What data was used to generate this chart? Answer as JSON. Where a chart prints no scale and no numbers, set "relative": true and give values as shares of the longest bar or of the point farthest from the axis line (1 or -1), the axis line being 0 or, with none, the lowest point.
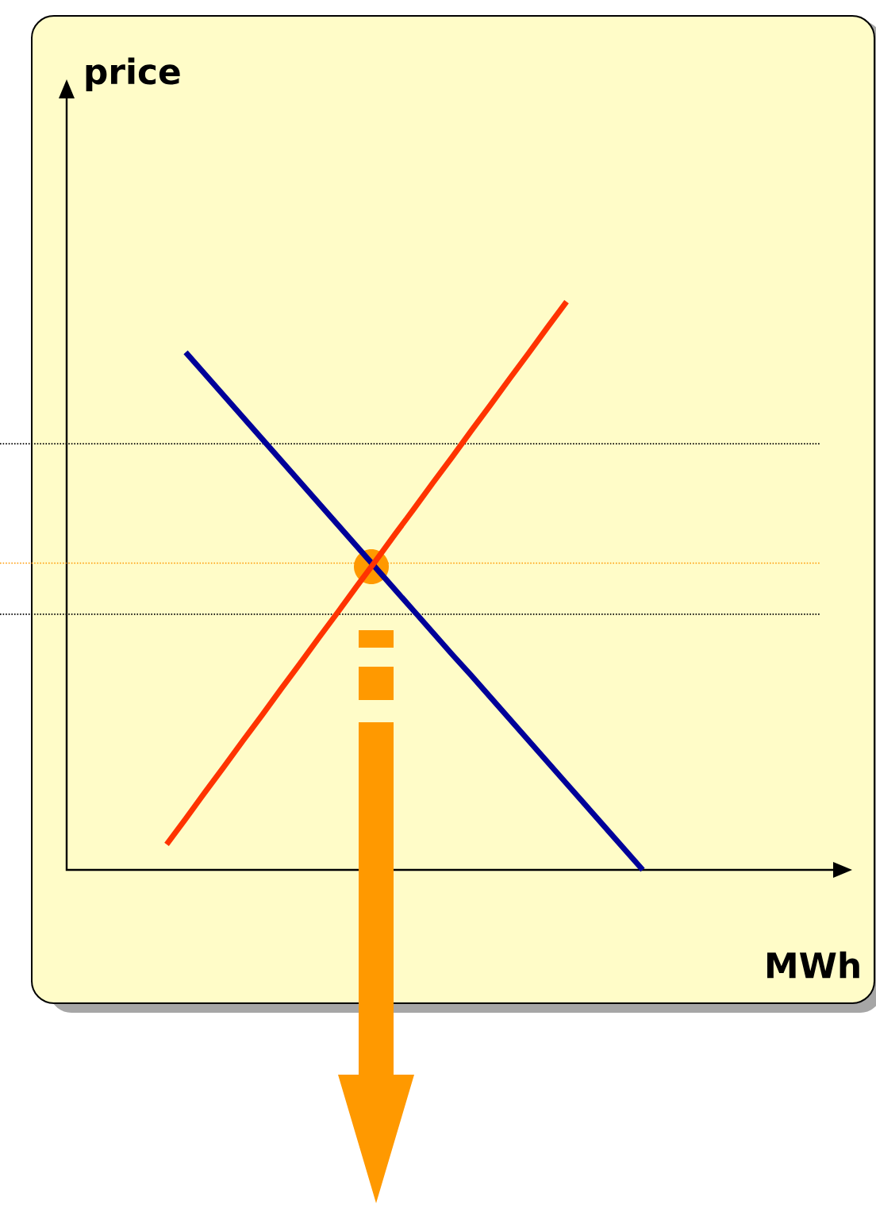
{
  "chart_data": {
    "type": "line",
    "xlabel": "MWh",
    "annotations": [
      "price"
    ],
    "relative": true,
    "line_style": "solid",
    "categories": [
      null,
      null,
      null,
      null,
      null,
      null,
      null,
      null,
      null,
      null,
      null,
      null,
      null,
      null,
      null,
      null,
      null,
      null,
      null,
      null,
      null,
      null,
      null,
      null,
      null,
      null
    ],
    "series": [
      {
        "color": "#000099",
        "values": [
          null,
          0.911,
          0.873,
          0.835,
          0.797,
          0.759,
          0.721,
          0.683,
          0.645,
          0.607,
          0.569,
          0.531,
          0.493,
          0.455,
          0.417,
          0.379,
          0.342,
          0.304,
          0.266,
          0.228,
          0.19,
          0.152,
          0.114,
          0.076,
          0.038,
          0
        ]
      },
      {
        "color": "#ff3300",
        "values": [
          0.045,
          0.09,
          0.136,
          0.181,
          0.227,
          0.272,
          0.318,
          0.363,
          0.409,
          0.454,
          0.5,
          0.545,
          0.591,
          0.636,
          0.682,
          0.727,
          0.773,
          0.818,
          0.864,
          0.909,
          0.955,
          1.0,
          null,
          null,
          null,
          null
        ]
      }
    ],
    "ref_lines": [
      {
        "axis": "y",
        "value": 0.75,
        "color": "#000000",
        "line_style": "dotted"
      },
      {
        "axis": "y",
        "value": 0.54,
        "color": "#ff9900",
        "line_style": "dotted"
      },
      {
        "axis": "y",
        "value": 0.45,
        "color": "#000000",
        "line_style": "dotted"
      }
    ]
  }
}
